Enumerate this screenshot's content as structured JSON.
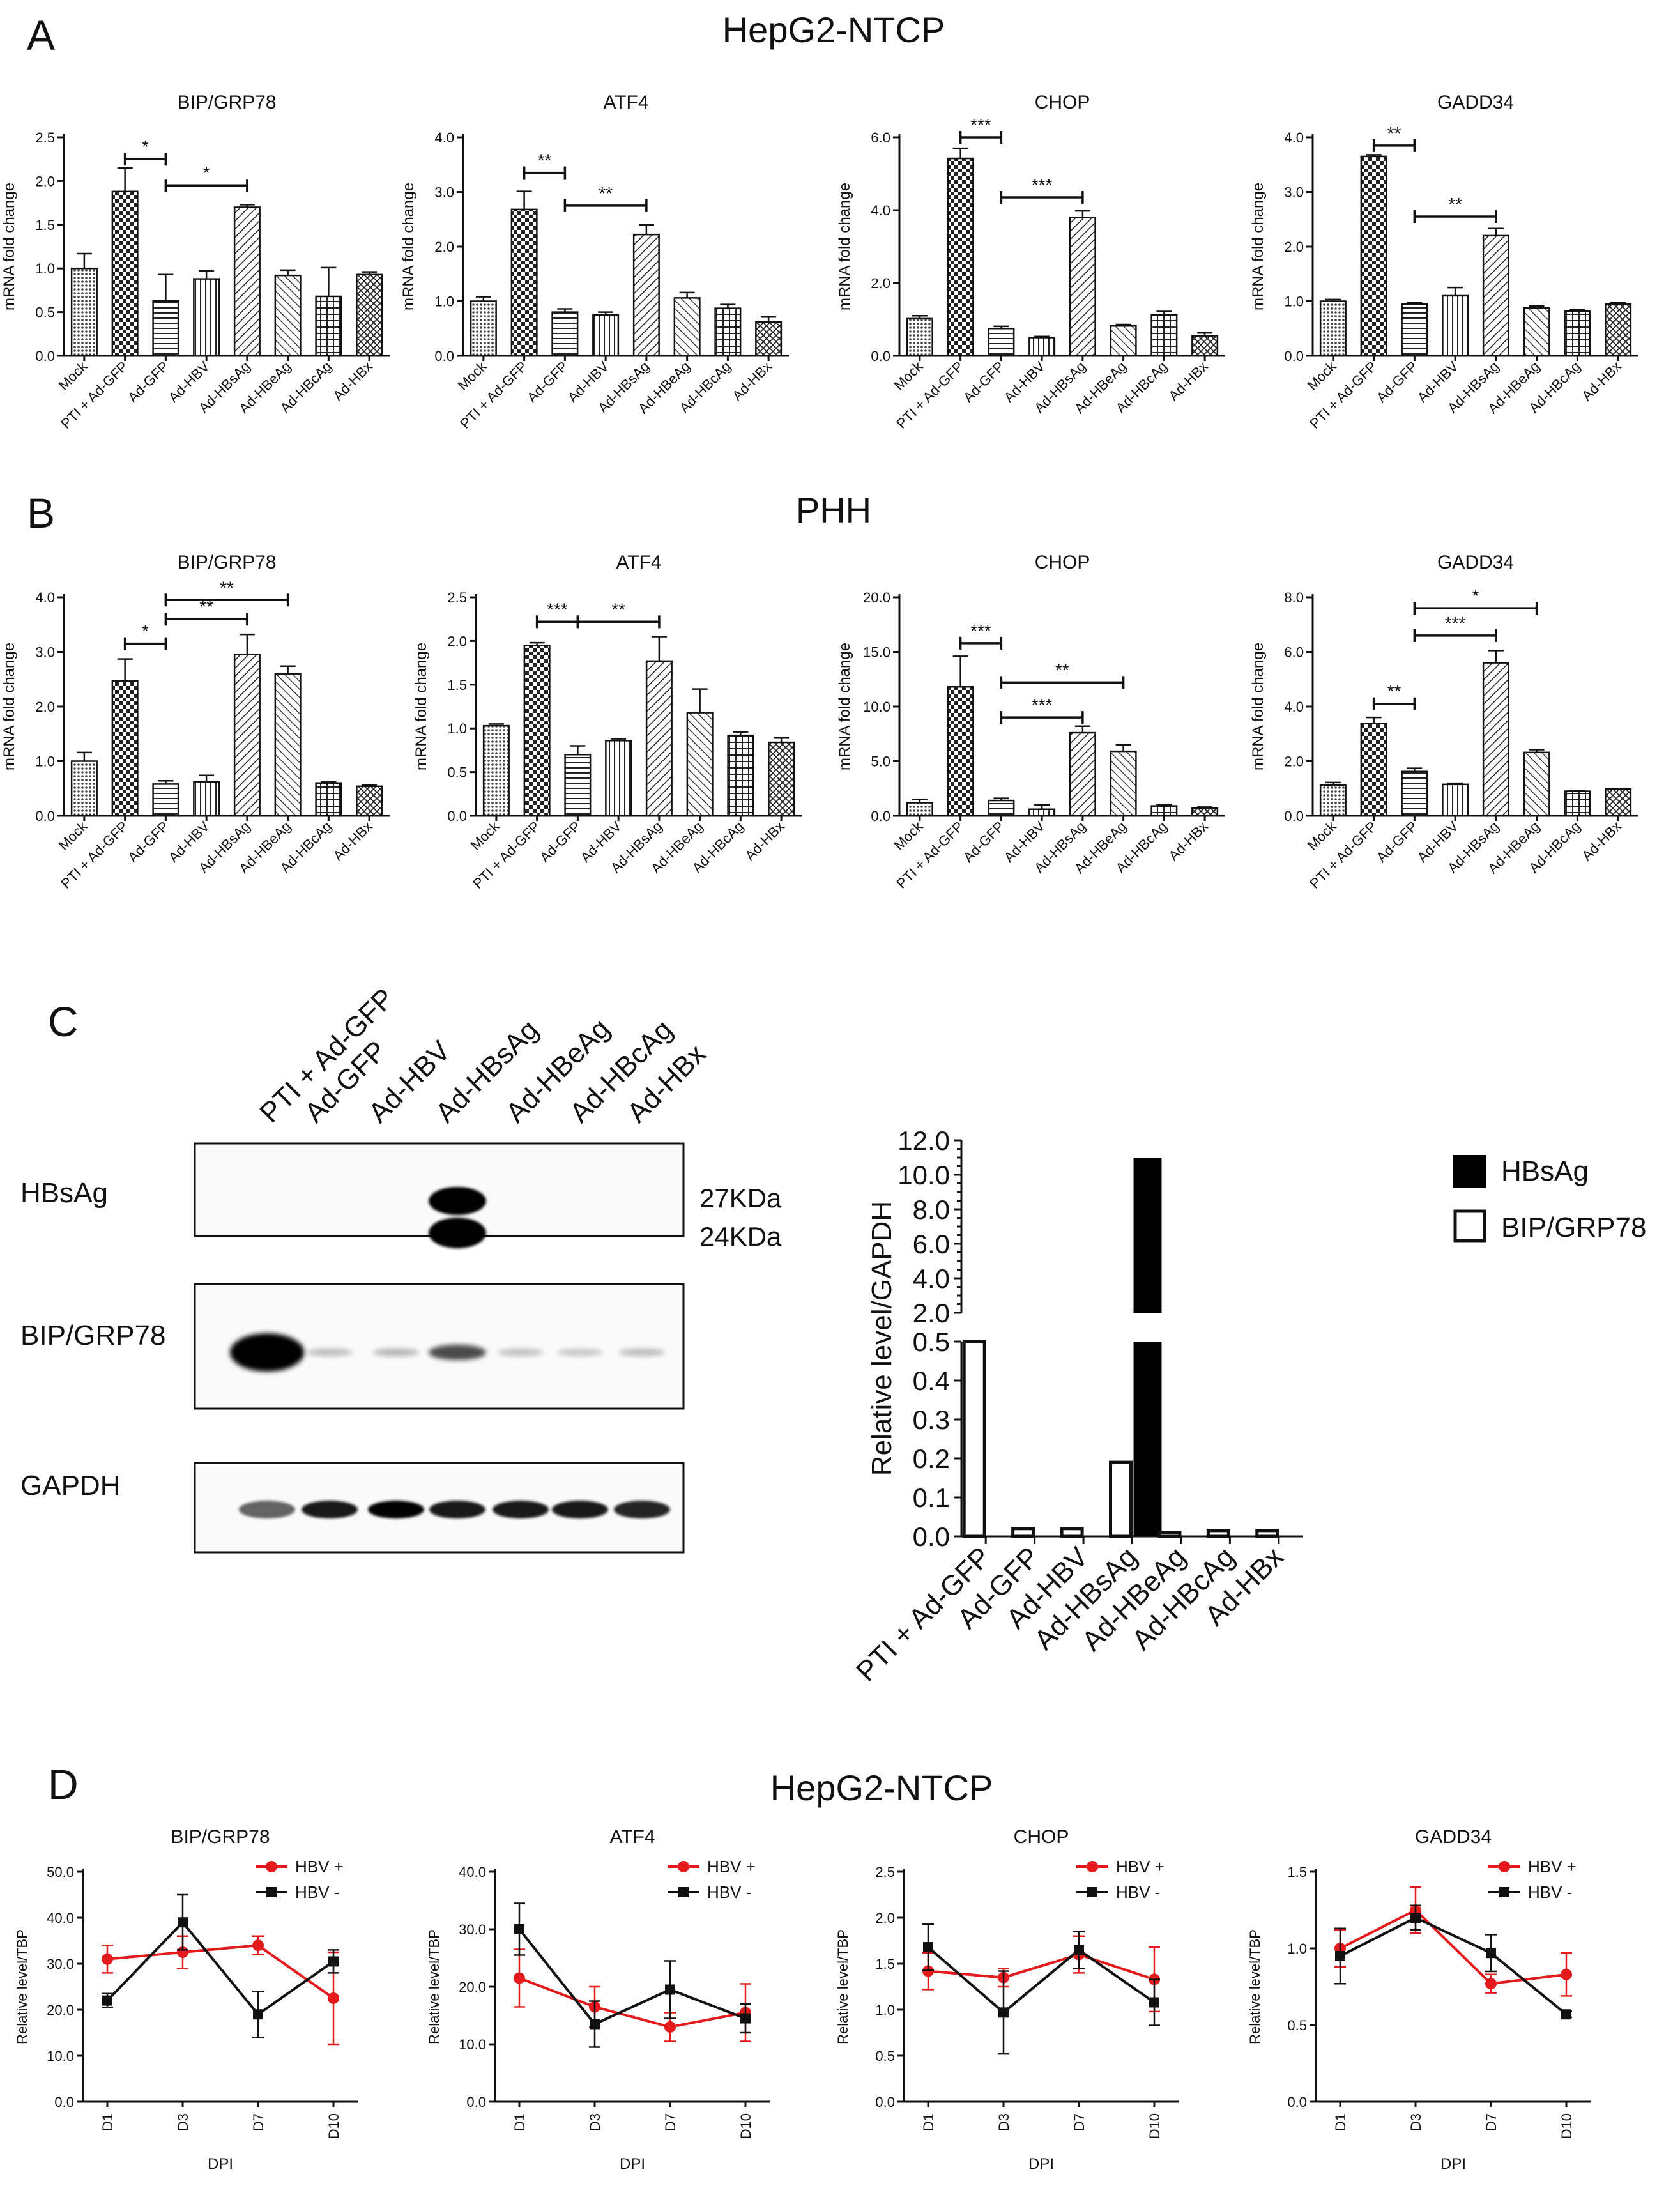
{
  "panel_labels": {
    "A": "A",
    "B": "B",
    "C": "C",
    "D": "D"
  },
  "section_titles": {
    "A": "HepG2-NTCP",
    "B": "PHH",
    "D": "HepG2-NTCP"
  },
  "categories": [
    "Mock",
    "PTI + Ad-GFP",
    "Ad-GFP",
    "Ad-HBV",
    "Ad-HBsAg",
    "Ad-HBeAg",
    "Ad-HBcAg",
    "Ad-HBx"
  ],
  "ylabel_mrna": "mRNA fold change",
  "colors": {
    "hbv_pos": "#e41a1c",
    "hbv_neg": "#111111",
    "axis": "#111111"
  },
  "blot": {
    "lanes": [
      "PTI + Ad-GFP",
      "Ad-GFP",
      "Ad-HBV",
      "Ad-HBsAg",
      "Ad-HBeAg",
      "Ad-HBcAg",
      "Ad-HBx"
    ],
    "rows": [
      "HBsAg",
      "BIP/GRP78",
      "GAPDH"
    ],
    "markers": [
      "27KDa",
      "24KDa"
    ],
    "bip_intensity": [
      1.0,
      0.12,
      0.15,
      0.5,
      0.1,
      0.08,
      0.12
    ],
    "gapdh_intensity": [
      0.6,
      0.9,
      1.0,
      0.9,
      0.9,
      0.9,
      0.85
    ],
    "hbsag_bands": [
      0,
      0,
      0,
      1,
      0,
      0,
      0
    ]
  },
  "chart_data": [
    {
      "panel": "A",
      "type": "bar",
      "title": "BIP/GRP78",
      "ylabel": "mRNA fold change",
      "categories": [
        "Mock",
        "PTI + Ad-GFP",
        "Ad-GFP",
        "Ad-HBV",
        "Ad-HBsAg",
        "Ad-HBeAg",
        "Ad-HBcAg",
        "Ad-HBx"
      ],
      "values": [
        1.0,
        1.88,
        0.63,
        0.88,
        1.7,
        0.92,
        0.68,
        0.93
      ],
      "errors": [
        0.17,
        0.27,
        0.3,
        0.09,
        0.03,
        0.06,
        0.33,
        0.03
      ],
      "ylim": [
        0,
        2.5
      ],
      "yticks": [
        "0.0",
        "0.5",
        "1.0",
        "1.5",
        "2.0",
        "2.5"
      ],
      "sig": [
        {
          "from": 1,
          "to": 2,
          "label": "*",
          "y": 2.25
        },
        {
          "from": 2,
          "to": 4,
          "label": "*",
          "y": 1.95
        }
      ]
    },
    {
      "panel": "A",
      "type": "bar",
      "title": "ATF4",
      "ylabel": "mRNA fold change",
      "categories": [
        "Mock",
        "PTI + Ad-GFP",
        "Ad-GFP",
        "Ad-HBV",
        "Ad-HBsAg",
        "Ad-HBeAg",
        "Ad-HBcAg",
        "Ad-HBx"
      ],
      "values": [
        1.0,
        2.68,
        0.8,
        0.75,
        2.22,
        1.06,
        0.87,
        0.62
      ],
      "errors": [
        0.08,
        0.33,
        0.06,
        0.05,
        0.18,
        0.1,
        0.07,
        0.09
      ],
      "ylim": [
        0,
        4.0
      ],
      "yticks": [
        "0.0",
        "1.0",
        "2.0",
        "3.0",
        "4.0"
      ],
      "sig": [
        {
          "from": 1,
          "to": 2,
          "label": "**",
          "y": 3.35
        },
        {
          "from": 2,
          "to": 4,
          "label": "**",
          "y": 2.75
        }
      ]
    },
    {
      "panel": "A",
      "type": "bar",
      "title": "CHOP",
      "ylabel": "mRNA fold change",
      "categories": [
        "Mock",
        "PTI + Ad-GFP",
        "Ad-GFP",
        "Ad-HBV",
        "Ad-HBsAg",
        "Ad-HBeAg",
        "Ad-HBcAg",
        "Ad-HBx"
      ],
      "values": [
        1.02,
        5.42,
        0.75,
        0.5,
        3.8,
        0.82,
        1.12,
        0.55
      ],
      "errors": [
        0.08,
        0.28,
        0.06,
        0.03,
        0.18,
        0.04,
        0.1,
        0.08
      ],
      "ylim": [
        0,
        6.0
      ],
      "yticks": [
        "0.0",
        "2.0",
        "4.0",
        "6.0"
      ],
      "sig": [
        {
          "from": 1,
          "to": 2,
          "label": "***",
          "y": 6.0
        },
        {
          "from": 2,
          "to": 4,
          "label": "***",
          "y": 4.35
        }
      ]
    },
    {
      "panel": "A",
      "type": "bar",
      "title": "GADD34",
      "ylabel": "mRNA fold change",
      "categories": [
        "Mock",
        "PTI + Ad-GFP",
        "Ad-GFP",
        "Ad-HBV",
        "Ad-HBsAg",
        "Ad-HBeAg",
        "Ad-HBcAg",
        "Ad-HBx"
      ],
      "values": [
        1.0,
        3.65,
        0.95,
        1.1,
        2.2,
        0.88,
        0.82,
        0.95
      ],
      "errors": [
        0.03,
        0.03,
        0.02,
        0.15,
        0.13,
        0.03,
        0.02,
        0.02
      ],
      "ylim": [
        0,
        4.0
      ],
      "yticks": [
        "0.0",
        "1.0",
        "2.0",
        "3.0",
        "4.0"
      ],
      "sig": [
        {
          "from": 1,
          "to": 2,
          "label": "**",
          "y": 3.85
        },
        {
          "from": 2,
          "to": 4,
          "label": "**",
          "y": 2.55
        }
      ]
    },
    {
      "panel": "B",
      "type": "bar",
      "title": "BIP/GRP78",
      "ylabel": "mRNA fold change",
      "categories": [
        "Mock",
        "PTI + Ad-GFP",
        "Ad-GFP",
        "Ad-HBV",
        "Ad-HBsAg",
        "Ad-HBeAg",
        "Ad-HBcAg",
        "Ad-HBx"
      ],
      "values": [
        1.0,
        2.47,
        0.58,
        0.62,
        2.95,
        2.6,
        0.6,
        0.54
      ],
      "errors": [
        0.16,
        0.4,
        0.06,
        0.12,
        0.37,
        0.14,
        0.02,
        0.02
      ],
      "ylim": [
        0,
        4.0
      ],
      "yticks": [
        "0.0",
        "1.0",
        "2.0",
        "3.0",
        "4.0"
      ],
      "sig": [
        {
          "from": 1,
          "to": 2,
          "label": "*",
          "y": 3.15
        },
        {
          "from": 2,
          "to": 4,
          "label": "**",
          "y": 3.6
        },
        {
          "from": 2,
          "to": 5,
          "label": "**",
          "y": 3.95
        }
      ]
    },
    {
      "panel": "B",
      "type": "bar",
      "title": "ATF4",
      "ylabel": "mRNA fold change",
      "categories": [
        "Mock",
        "PTI + Ad-GFP",
        "Ad-GFP",
        "Ad-HBV",
        "Ad-HBsAg",
        "Ad-HBeAg",
        "Ad-HBcAg",
        "Ad-HBx"
      ],
      "values": [
        1.03,
        1.95,
        0.7,
        0.86,
        1.77,
        1.18,
        0.92,
        0.84
      ],
      "errors": [
        0.02,
        0.03,
        0.1,
        0.02,
        0.28,
        0.27,
        0.04,
        0.05
      ],
      "ylim": [
        0,
        2.5
      ],
      "yticks": [
        "0.0",
        "0.5",
        "1.0",
        "1.5",
        "2.0",
        "2.5"
      ],
      "sig": [
        {
          "from": 1,
          "to": 2,
          "label": "***",
          "y": 2.22
        },
        {
          "from": 2,
          "to": 4,
          "label": "**",
          "y": 2.22
        }
      ]
    },
    {
      "panel": "B",
      "type": "bar",
      "title": "CHOP",
      "ylabel": "mRNA fold change",
      "categories": [
        "Mock",
        "PTI + Ad-GFP",
        "Ad-GFP",
        "Ad-HBV",
        "Ad-HBsAg",
        "Ad-HBeAg",
        "Ad-HBcAg",
        "Ad-HBx"
      ],
      "values": [
        1.2,
        11.8,
        1.4,
        0.6,
        7.6,
        5.9,
        0.9,
        0.7
      ],
      "errors": [
        0.3,
        2.8,
        0.2,
        0.4,
        0.6,
        0.6,
        0.1,
        0.1
      ],
      "ylim": [
        0,
        20.0
      ],
      "yticks": [
        "0.0",
        "5.0",
        "10.0",
        "15.0",
        "20.0"
      ],
      "sig": [
        {
          "from": 1,
          "to": 2,
          "label": "***",
          "y": 15.8
        },
        {
          "from": 2,
          "to": 5,
          "label": "**",
          "y": 12.2
        },
        {
          "from": 2,
          "to": 4,
          "label": "***",
          "y": 9.0
        }
      ]
    },
    {
      "panel": "B",
      "type": "bar",
      "title": "GADD34",
      "ylabel": "mRNA fold change",
      "categories": [
        "Mock",
        "PTI + Ad-GFP",
        "Ad-GFP",
        "Ad-HBV",
        "Ad-HBsAg",
        "Ad-HBeAg",
        "Ad-HBcAg",
        "Ad-HBx"
      ],
      "values": [
        1.12,
        3.38,
        1.62,
        1.15,
        5.6,
        2.32,
        0.9,
        0.98
      ],
      "errors": [
        0.1,
        0.22,
        0.12,
        0.04,
        0.45,
        0.1,
        0.03,
        0.02
      ],
      "ylim": [
        0,
        8.0
      ],
      "yticks": [
        "0.0",
        "2.0",
        "4.0",
        "6.0",
        "8.0"
      ],
      "sig": [
        {
          "from": 1,
          "to": 2,
          "label": "**",
          "y": 4.1
        },
        {
          "from": 2,
          "to": 4,
          "label": "***",
          "y": 6.6
        },
        {
          "from": 2,
          "to": 5,
          "label": "*",
          "y": 7.6
        }
      ]
    },
    {
      "panel": "C",
      "type": "bar",
      "ylabel": "Relative level/GAPDH",
      "categories": [
        "PTI + Ad-GFP",
        "Ad-GFP",
        "Ad-HBV",
        "Ad-HBsAg",
        "Ad-HBeAg",
        "Ad-HBcAg",
        "Ad-HBx"
      ],
      "series": [
        {
          "name": "BIP/GRP78",
          "values": [
            2.0,
            0.02,
            0.02,
            0.19,
            0.01,
            0.015,
            0.015
          ]
        },
        {
          "name": "HBsAg",
          "values": [
            0,
            0,
            0,
            11.0,
            0,
            0,
            0
          ]
        }
      ],
      "yticks_lower": [
        "0.0",
        "0.1",
        "0.2",
        "0.3",
        "0.4",
        "0.5"
      ],
      "yticks_upper": [
        "2.0",
        "4.0",
        "6.0",
        "8.0",
        "10.0",
        "12.0"
      ],
      "axis_break": [
        0.5,
        2.0
      ]
    },
    {
      "panel": "D",
      "type": "line",
      "title": "BIP/GRP78",
      "xlabel": "DPI",
      "ylabel": "Relative level/TBP",
      "x": [
        "D1",
        "D3",
        "D7",
        "D10"
      ],
      "series": [
        {
          "name": "HBV +",
          "values": [
            31.0,
            32.5,
            34.0,
            22.5
          ],
          "errors": [
            3.0,
            3.5,
            2.0,
            10.0
          ]
        },
        {
          "name": "HBV -",
          "values": [
            22.0,
            39.0,
            19.0,
            30.5
          ],
          "errors": [
            1.5,
            6.0,
            5.0,
            2.5
          ]
        }
      ],
      "ylim": [
        0,
        50
      ],
      "yticks": [
        "0.0",
        "10.0",
        "20.0",
        "30.0",
        "40.0",
        "50.0"
      ]
    },
    {
      "panel": "D",
      "type": "line",
      "title": "ATF4",
      "xlabel": "DPI",
      "ylabel": "Relative level/TBP",
      "x": [
        "D1",
        "D3",
        "D7",
        "D10"
      ],
      "series": [
        {
          "name": "HBV +",
          "values": [
            21.5,
            16.5,
            13.0,
            15.5
          ],
          "errors": [
            5.0,
            3.5,
            2.5,
            5.0
          ]
        },
        {
          "name": "HBV -",
          "values": [
            30.0,
            13.5,
            19.5,
            14.5
          ],
          "errors": [
            4.5,
            4.0,
            5.0,
            2.5
          ]
        }
      ],
      "ylim": [
        0,
        40
      ],
      "yticks": [
        "0.0",
        "10.0",
        "20.0",
        "30.0",
        "40.0"
      ]
    },
    {
      "panel": "D",
      "type": "line",
      "title": "CHOP",
      "xlabel": "DPI",
      "ylabel": "Relative level/TBP",
      "x": [
        "D1",
        "D3",
        "D7",
        "D10"
      ],
      "series": [
        {
          "name": "HBV +",
          "values": [
            1.42,
            1.35,
            1.6,
            1.33
          ],
          "errors": [
            0.2,
            0.1,
            0.2,
            0.35
          ]
        },
        {
          "name": "HBV -",
          "values": [
            1.68,
            0.97,
            1.65,
            1.08
          ],
          "errors": [
            0.25,
            0.45,
            0.2,
            0.25
          ]
        }
      ],
      "ylim": [
        0,
        2.5
      ],
      "yticks": [
        "0.0",
        "0.5",
        "1.0",
        "1.5",
        "2.0",
        "2.5"
      ]
    },
    {
      "panel": "D",
      "type": "line",
      "title": "GADD34",
      "xlabel": "DPI",
      "ylabel": "Relative level/TBP",
      "x": [
        "D1",
        "D3",
        "D7",
        "D10"
      ],
      "series": [
        {
          "name": "HBV +",
          "values": [
            1.0,
            1.25,
            0.77,
            0.83
          ],
          "errors": [
            0.12,
            0.15,
            0.06,
            0.14
          ]
        },
        {
          "name": "HBV -",
          "values": [
            0.95,
            1.2,
            0.97,
            0.57
          ],
          "errors": [
            0.18,
            0.08,
            0.12,
            0.02
          ]
        }
      ],
      "ylim": [
        0,
        1.5
      ],
      "yticks": [
        "0.0",
        "0.5",
        "1.0",
        "1.5"
      ]
    }
  ]
}
